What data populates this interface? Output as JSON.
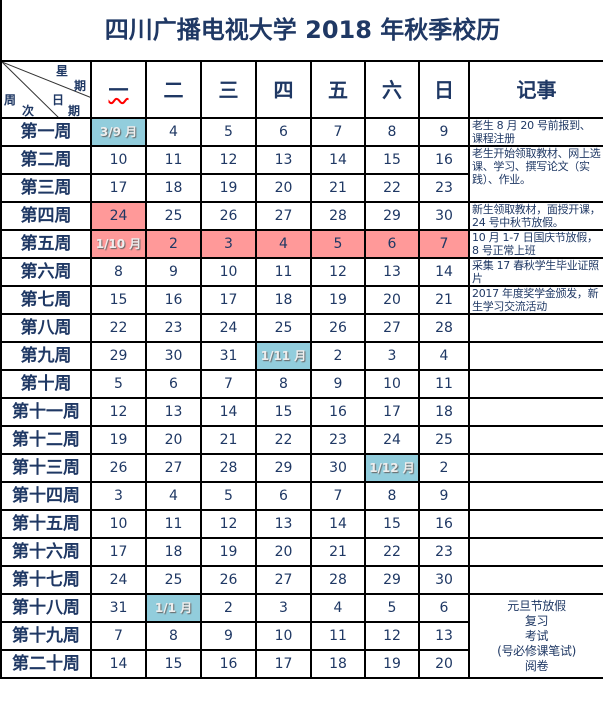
{
  "title": "四川广播电视大学 2018 年秋季校历",
  "corner": {
    "xing": "星",
    "qi1": "期",
    "zhou": "周",
    "ri": "日",
    "ci": "次",
    "qi2": "期"
  },
  "weekdays": [
    "一",
    "二",
    "三",
    "四",
    "五",
    "六",
    "日"
  ],
  "notes_header": "记事",
  "colors": {
    "text": "#1f3864",
    "highlight_month": "#92cddc",
    "highlight_holiday": "#ff9999"
  },
  "weeks": [
    {
      "label": "第一周",
      "days": [
        "3/9 月",
        "4",
        "5",
        "6",
        "7",
        "8",
        "9"
      ],
      "hl": {
        "0": "blue"
      }
    },
    {
      "label": "第二周",
      "days": [
        "10",
        "11",
        "12",
        "13",
        "14",
        "15",
        "16"
      ]
    },
    {
      "label": "第三周",
      "days": [
        "17",
        "18",
        "19",
        "20",
        "21",
        "22",
        "23"
      ]
    },
    {
      "label": "第四周",
      "days": [
        "24",
        "25",
        "26",
        "27",
        "28",
        "29",
        "30"
      ],
      "hl": {
        "0": "pink"
      }
    },
    {
      "label": "第五周",
      "days": [
        "1/10 月",
        "2",
        "3",
        "4",
        "5",
        "6",
        "7"
      ],
      "hl": {
        "0": "pink",
        "1": "pink",
        "2": "pink",
        "3": "pink",
        "4": "pink",
        "5": "pink",
        "6": "pink"
      }
    },
    {
      "label": "第六周",
      "days": [
        "8",
        "9",
        "10",
        "11",
        "12",
        "13",
        "14"
      ]
    },
    {
      "label": "第七周",
      "days": [
        "15",
        "16",
        "17",
        "18",
        "19",
        "20",
        "21"
      ]
    },
    {
      "label": "第八周",
      "days": [
        "22",
        "23",
        "24",
        "25",
        "26",
        "27",
        "28"
      ]
    },
    {
      "label": "第九周",
      "days": [
        "29",
        "30",
        "31",
        "1/11 月",
        "2",
        "3",
        "4"
      ],
      "hl": {
        "3": "blue"
      }
    },
    {
      "label": "第十周",
      "days": [
        "5",
        "6",
        "7",
        "8",
        "9",
        "10",
        "11"
      ]
    },
    {
      "label": "第十一周",
      "days": [
        "12",
        "13",
        "14",
        "15",
        "16",
        "17",
        "18"
      ]
    },
    {
      "label": "第十二周",
      "days": [
        "19",
        "20",
        "21",
        "22",
        "23",
        "24",
        "25"
      ]
    },
    {
      "label": "第十三周",
      "days": [
        "26",
        "27",
        "28",
        "29",
        "30",
        "1/12 月",
        "2"
      ],
      "hl": {
        "5": "blue"
      }
    },
    {
      "label": "第十四周",
      "days": [
        "3",
        "4",
        "5",
        "6",
        "7",
        "8",
        "9"
      ]
    },
    {
      "label": "第十五周",
      "days": [
        "10",
        "11",
        "12",
        "13",
        "14",
        "15",
        "16"
      ]
    },
    {
      "label": "第十六周",
      "days": [
        "17",
        "18",
        "19",
        "20",
        "21",
        "22",
        "23"
      ]
    },
    {
      "label": "第十七周",
      "days": [
        "24",
        "25",
        "26",
        "27",
        "28",
        "29",
        "30"
      ]
    },
    {
      "label": "第十八周",
      "days": [
        "31",
        "1/1 月",
        "2",
        "3",
        "4",
        "5",
        "6"
      ],
      "hl": {
        "1": "blue"
      }
    },
    {
      "label": "第十九周",
      "days": [
        "7",
        "8",
        "9",
        "10",
        "11",
        "12",
        "13"
      ]
    },
    {
      "label": "第二十周",
      "days": [
        "14",
        "15",
        "16",
        "17",
        "18",
        "19",
        "20"
      ]
    }
  ],
  "notes": [
    {
      "row": 0,
      "span": 1,
      "lines": [
        "老生 8 月 20 号前报到、课程注册"
      ]
    },
    {
      "row": 1,
      "span": 2,
      "lines": [
        "老生开始领取教材、网上选课、学习、撰写论文（实践）、作业。"
      ]
    },
    {
      "row": 3,
      "span": 1,
      "lines": [
        "新生领取教材，面授开课，24 号中秋节放假。"
      ]
    },
    {
      "row": 4,
      "span": 1,
      "lines": [
        "10 月 1-7 日国庆节放假，8 号正常上班"
      ]
    },
    {
      "row": 5,
      "span": 1,
      "lines": [
        "采集 17 春秋学生毕业证照片"
      ]
    },
    {
      "row": 6,
      "span": 1,
      "lines": [
        "2017 年度奖学金颁发，新生学习交流活动"
      ]
    },
    {
      "row": 7,
      "span": 1,
      "lines": []
    },
    {
      "row": 8,
      "span": 1,
      "lines": []
    },
    {
      "row": 9,
      "span": 1,
      "lines": []
    },
    {
      "row": 10,
      "span": 1,
      "lines": []
    },
    {
      "row": 11,
      "span": 1,
      "lines": []
    },
    {
      "row": 12,
      "span": 1,
      "lines": []
    },
    {
      "row": 13,
      "span": 1,
      "lines": []
    },
    {
      "row": 14,
      "span": 1,
      "lines": []
    },
    {
      "row": 15,
      "span": 1,
      "lines": []
    },
    {
      "row": 16,
      "span": 1,
      "lines": []
    },
    {
      "row": 17,
      "span": 3,
      "center": true,
      "lines": [
        "元旦节放假",
        "复习",
        "考试",
        "(号必修课笔试)",
        "阅卷"
      ]
    }
  ]
}
